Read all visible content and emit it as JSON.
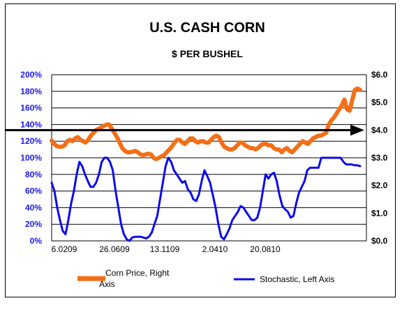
{
  "chart_data": {
    "type": "line",
    "title": "U.S. CASH CORN",
    "subtitle": "$ PER BUSHEL",
    "x_ticks": [
      "6.0209",
      "26.0609",
      "13.1109",
      "2.0410",
      "20.0810"
    ],
    "left_axis": {
      "ylim": [
        0,
        200
      ],
      "ticks": [
        "0%",
        "20%",
        "40%",
        "60%",
        "80%",
        "100%",
        "120%",
        "140%",
        "160%",
        "180%",
        "200%"
      ]
    },
    "right_axis": {
      "ylim": [
        0,
        6
      ],
      "ticks": [
        "$0.0",
        "$1.0",
        "$2.0",
        "$3.0",
        "$4.0",
        "$5.0",
        "$6.0"
      ]
    },
    "grid": "horizontal",
    "annotation": {
      "type": "arrow",
      "axis": "right",
      "value": 4.0
    },
    "series": [
      {
        "name": "Corn Price, Right Axis",
        "axis": "right",
        "color": "#f36f16",
        "values": [
          3.62,
          3.5,
          3.42,
          3.4,
          3.4,
          3.45,
          3.6,
          3.65,
          3.6,
          3.7,
          3.75,
          3.65,
          3.6,
          3.55,
          3.65,
          3.8,
          3.9,
          4.0,
          4.05,
          4.1,
          4.15,
          4.2,
          4.2,
          4.05,
          3.9,
          3.75,
          3.55,
          3.35,
          3.25,
          3.2,
          3.2,
          3.22,
          3.25,
          3.2,
          3.12,
          3.1,
          3.12,
          3.15,
          3.12,
          3.0,
          2.95,
          3.0,
          3.05,
          3.1,
          3.2,
          3.3,
          3.4,
          3.55,
          3.65,
          3.65,
          3.55,
          3.5,
          3.6,
          3.7,
          3.7,
          3.6,
          3.55,
          3.6,
          3.6,
          3.55,
          3.55,
          3.65,
          3.75,
          3.8,
          3.75,
          3.55,
          3.4,
          3.35,
          3.3,
          3.3,
          3.35,
          3.45,
          3.55,
          3.55,
          3.45,
          3.4,
          3.35,
          3.35,
          3.3,
          3.35,
          3.45,
          3.5,
          3.5,
          3.45,
          3.45,
          3.35,
          3.3,
          3.3,
          3.2,
          3.3,
          3.35,
          3.25,
          3.2,
          3.3,
          3.4,
          3.5,
          3.6,
          3.55,
          3.5,
          3.6,
          3.7,
          3.75,
          3.8,
          3.8,
          3.85,
          3.9,
          4.2,
          4.35,
          4.45,
          4.6,
          4.75,
          4.9,
          5.1,
          4.75,
          4.7,
          5.1,
          5.45,
          5.5,
          5.45
        ]
      },
      {
        "name": "Stochastic, Left Axis",
        "axis": "left",
        "color": "#0a0aee",
        "values": [
          70,
          60,
          40,
          25,
          12,
          8,
          25,
          45,
          60,
          80,
          95,
          90,
          80,
          72,
          65,
          65,
          70,
          80,
          95,
          100,
          100,
          95,
          85,
          60,
          40,
          20,
          8,
          2,
          0,
          4,
          5,
          5,
          5,
          4,
          3,
          5,
          10,
          20,
          30,
          50,
          70,
          90,
          100,
          95,
          85,
          80,
          75,
          70,
          72,
          62,
          58,
          50,
          48,
          56,
          72,
          85,
          78,
          70,
          55,
          40,
          20,
          5,
          2,
          8,
          15,
          25,
          30,
          35,
          42,
          40,
          35,
          30,
          25,
          25,
          28,
          40,
          60,
          80,
          75,
          80,
          82,
          72,
          55,
          42,
          38,
          35,
          28,
          30,
          45,
          58,
          65,
          72,
          85,
          88,
          88,
          88,
          88,
          100,
          100,
          100,
          100,
          100,
          100,
          100,
          100,
          95,
          92,
          92,
          92,
          91,
          91,
          90
        ]
      }
    ],
    "legend": {
      "placement": "bottom"
    }
  },
  "legend_labels": {
    "corn_line1": "Corn Price, Right",
    "corn_line2": "Axis",
    "stoch": "Stochastic, Left Axis"
  }
}
